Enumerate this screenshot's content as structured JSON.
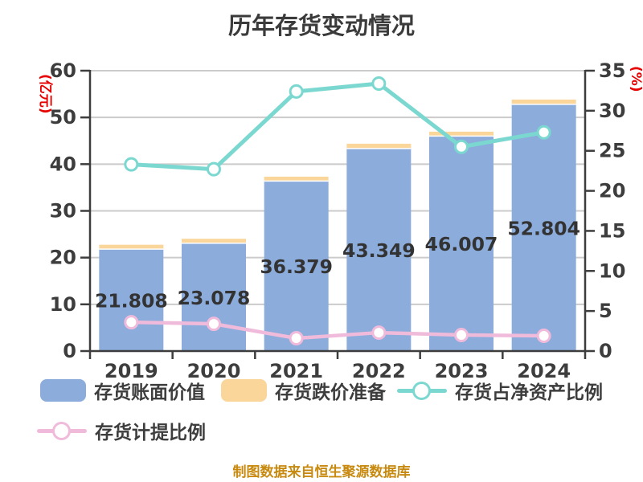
{
  "title": "历年存货变动情况",
  "footer": {
    "text": "制图数据来自恒生聚源数据库",
    "color": "#c8890f"
  },
  "colors": {
    "axis_line": "#3d3d3d",
    "axis_text": "#3d3d3d",
    "gridline": "#cbcbcb",
    "bar_label": "#333333",
    "background": "#ffffff"
  },
  "chart_data": {
    "type": "combo-bar-line",
    "title": "历年存货变动情况",
    "categories": [
      "2019",
      "2020",
      "2021",
      "2022",
      "2023",
      "2024"
    ],
    "series": [
      {
        "name": "存货账面价值",
        "type": "bar",
        "stack": "inventory",
        "axis": "left",
        "color": "#8cacdb",
        "values": [
          21.808,
          23.078,
          36.379,
          43.349,
          46.007,
          52.804
        ],
        "data_labels": [
          "21.808",
          "23.078",
          "36.379",
          "43.349",
          "46.007",
          "52.804"
        ]
      },
      {
        "name": "存货跌价准备",
        "type": "bar",
        "stack": "inventory",
        "axis": "left",
        "color": "#fad69b",
        "values": [
          0.82,
          0.82,
          0.6,
          1.02,
          0.94,
          1.02
        ]
      },
      {
        "name": "存货占净资产比例",
        "type": "line",
        "axis": "right",
        "color": "#7bd8d0",
        "marker": "white-circle",
        "values": [
          23.3,
          22.7,
          32.4,
          33.4,
          25.5,
          27.3
        ]
      },
      {
        "name": "存货计提比例",
        "type": "line",
        "axis": "right",
        "color": "#f0badb",
        "marker": "white-circle",
        "values": [
          3.6,
          3.4,
          1.6,
          2.3,
          2.0,
          1.9
        ]
      }
    ],
    "left_axis": {
      "name": "(亿元)",
      "min": 0,
      "max": 60,
      "step": 10,
      "color": "#e60000",
      "tick_labels": [
        "0",
        "10",
        "20",
        "30",
        "40",
        "50",
        "60"
      ]
    },
    "right_axis": {
      "name": "(%)",
      "min": 0,
      "max": 35,
      "step": 5,
      "color": "#e60000",
      "tick_labels": [
        "0",
        "5",
        "10",
        "15",
        "20",
        "25",
        "30",
        "35"
      ]
    },
    "grid": true,
    "legend_position": "bottom"
  }
}
